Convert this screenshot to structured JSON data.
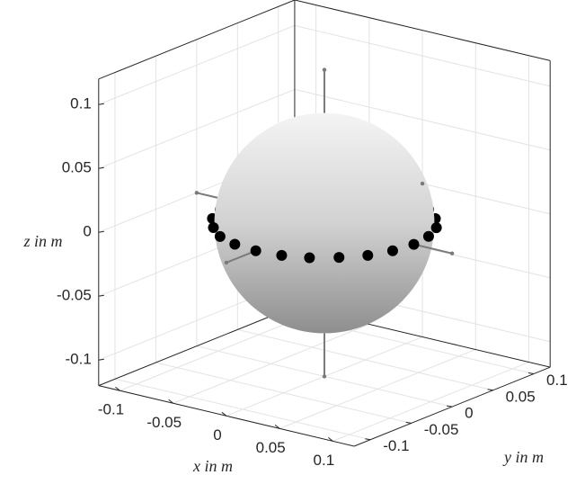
{
  "chart_data": {
    "type": "scatter3",
    "x": [
      0.084,
      0.081,
      0.073,
      0.059,
      0.042,
      0.022,
      0,
      -0.022,
      -0.042,
      -0.059,
      -0.073,
      -0.081,
      -0.084,
      -0.081,
      -0.073,
      -0.059,
      -0.042,
      -0.022,
      0,
      0.022,
      0.042,
      0.059,
      0.073,
      0.081
    ],
    "y": [
      0,
      0.022,
      0.042,
      0.059,
      0.073,
      0.081,
      0.084,
      0.081,
      0.073,
      0.059,
      0.042,
      0.022,
      0,
      -0.022,
      -0.042,
      -0.059,
      -0.073,
      -0.081,
      -0.084,
      -0.081,
      -0.073,
      -0.059,
      -0.042,
      -0.022
    ],
    "z": [
      0,
      0,
      0,
      0,
      0,
      0,
      0,
      0,
      0,
      0,
      0,
      0,
      0,
      0,
      0,
      0,
      0,
      0,
      0,
      0,
      0,
      0,
      0,
      0
    ],
    "color": "#000000",
    "sphere_radius": 0.082,
    "stem_length": 0.12,
    "xlim": [
      -0.12,
      0.12
    ],
    "ylim": [
      -0.12,
      0.12
    ],
    "zlim": [
      -0.12,
      0.12
    ],
    "xticks": [
      -0.1,
      -0.05,
      0,
      0.05,
      0.1
    ],
    "yticks": [
      -0.1,
      -0.05,
      0,
      0.05,
      0.1
    ],
    "zticks": [
      -0.1,
      -0.05,
      0,
      0.05,
      0.1
    ],
    "xlabel": "x in m",
    "ylabel": "y in m",
    "zlabel": "z in m",
    "grid": true,
    "view": {
      "azimuth": -37.5,
      "elevation": 18
    }
  }
}
